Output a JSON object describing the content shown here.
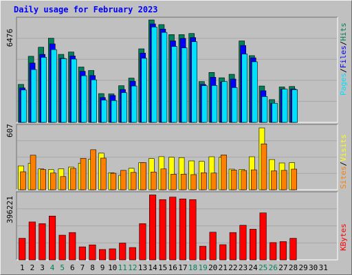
{
  "title": "Daily usage for February 2023",
  "colors": {
    "hits": "#00805c",
    "files": "#0000ff",
    "pages": "#00e0ff",
    "visits": "#ffff00",
    "sites": "#ff8000",
    "kbytes": "#ff0000",
    "weekend_day": "#00805c",
    "weekday": "#000000",
    "panel_bg": "#c0c0c0",
    "gridline": "#a8a8a8"
  },
  "chart_data": [
    {
      "type": "bar",
      "panel": "hits-files-pages",
      "ymax_label": "6476",
      "ylim": [
        0,
        6476
      ],
      "grid": true,
      "legend_words": [
        "Pages",
        "Files",
        "Hits"
      ],
      "legend_placement": "right",
      "categories": [
        "1",
        "2",
        "3",
        "4",
        "5",
        "6",
        "7",
        "8",
        "9",
        "10",
        "11",
        "12",
        "13",
        "14",
        "15",
        "16",
        "17",
        "18",
        "19",
        "20",
        "21",
        "22",
        "23",
        "24",
        "25",
        "26",
        "27",
        "28",
        "29",
        "30",
        "31"
      ],
      "series": [
        {
          "name": "Hits",
          "values": [
            2400,
            4180,
            4750,
            5320,
            4300,
            4450,
            3500,
            3280,
            1820,
            1800,
            2320,
            2800,
            4650,
            6476,
            6180,
            5550,
            5550,
            5620,
            2580,
            3160,
            2820,
            3040,
            5150,
            4220,
            2300,
            1440,
            2240,
            2270,
            0,
            0,
            0
          ]
        },
        {
          "name": "Files",
          "values": [
            2180,
            3750,
            4300,
            4960,
            4050,
            4200,
            3230,
            2960,
            1570,
            1700,
            2080,
            2600,
            4380,
            6220,
            5900,
            5150,
            5310,
            5360,
            2400,
            2850,
            2560,
            2740,
            4860,
            4080,
            2000,
            1200,
            2100,
            2110,
            0,
            0,
            0
          ]
        },
        {
          "name": "Pages",
          "values": [
            2050,
            3340,
            4110,
            4600,
            4030,
            4000,
            2950,
            2690,
            1410,
            1380,
            1880,
            2300,
            4050,
            6030,
            5690,
            4800,
            4710,
            5100,
            2320,
            2330,
            2580,
            2200,
            4320,
            3830,
            1630,
            1210,
            2100,
            2070,
            0,
            0,
            0
          ]
        }
      ]
    },
    {
      "type": "bar",
      "panel": "visits-sites",
      "ymax_label": "607",
      "ylim": [
        0,
        607
      ],
      "grid": true,
      "legend_words": [
        "Sites",
        "Visits"
      ],
      "legend_placement": "right",
      "categories": [
        "1",
        "2",
        "3",
        "4",
        "5",
        "6",
        "7",
        "8",
        "9",
        "10",
        "11",
        "12",
        "13",
        "14",
        "15",
        "16",
        "17",
        "18",
        "19",
        "20",
        "21",
        "22",
        "23",
        "24",
        "25",
        "26",
        "27",
        "28",
        "29",
        "30",
        "31"
      ],
      "series": [
        {
          "name": "Visits",
          "values": [
            232,
            257,
            202,
            195,
            203,
            220,
            258,
            297,
            355,
            165,
            140,
            208,
            263,
            302,
            321,
            315,
            312,
            280,
            275,
            320,
            315,
            200,
            197,
            320,
            600,
            293,
            260,
            262,
            0,
            0,
            0
          ]
        },
        {
          "name": "Sites",
          "values": [
            174,
            335,
            196,
            162,
            128,
            207,
            305,
            388,
            307,
            160,
            188,
            168,
            263,
            172,
            202,
            151,
            151,
            147,
            165,
            162,
            338,
            191,
            187,
            193,
            445,
            183,
            188,
            200,
            0,
            0,
            0
          ]
        }
      ]
    },
    {
      "type": "bar",
      "panel": "kbytes",
      "ymax_label": "396221",
      "ylim": [
        0,
        396221
      ],
      "grid": true,
      "legend_words": [
        "KBytes"
      ],
      "legend_placement": "right",
      "categories": [
        "1",
        "2",
        "3",
        "4",
        "5",
        "6",
        "7",
        "8",
        "9",
        "10",
        "11",
        "12",
        "13",
        "14",
        "15",
        "16",
        "17",
        "18",
        "19",
        "20",
        "21",
        "22",
        "23",
        "24",
        "25",
        "26",
        "27",
        "28",
        "29",
        "30",
        "31"
      ],
      "series": [
        {
          "name": "KBytes",
          "values": [
            131000,
            230000,
            220000,
            266000,
            150000,
            166000,
            79000,
            91000,
            63000,
            67000,
            102000,
            75000,
            220000,
            394000,
            366000,
            381000,
            370000,
            366000,
            83000,
            168000,
            92000,
            166000,
            210000,
            186000,
            285000,
            105000,
            111000,
            131000,
            0,
            0,
            0
          ]
        }
      ]
    }
  ]
}
